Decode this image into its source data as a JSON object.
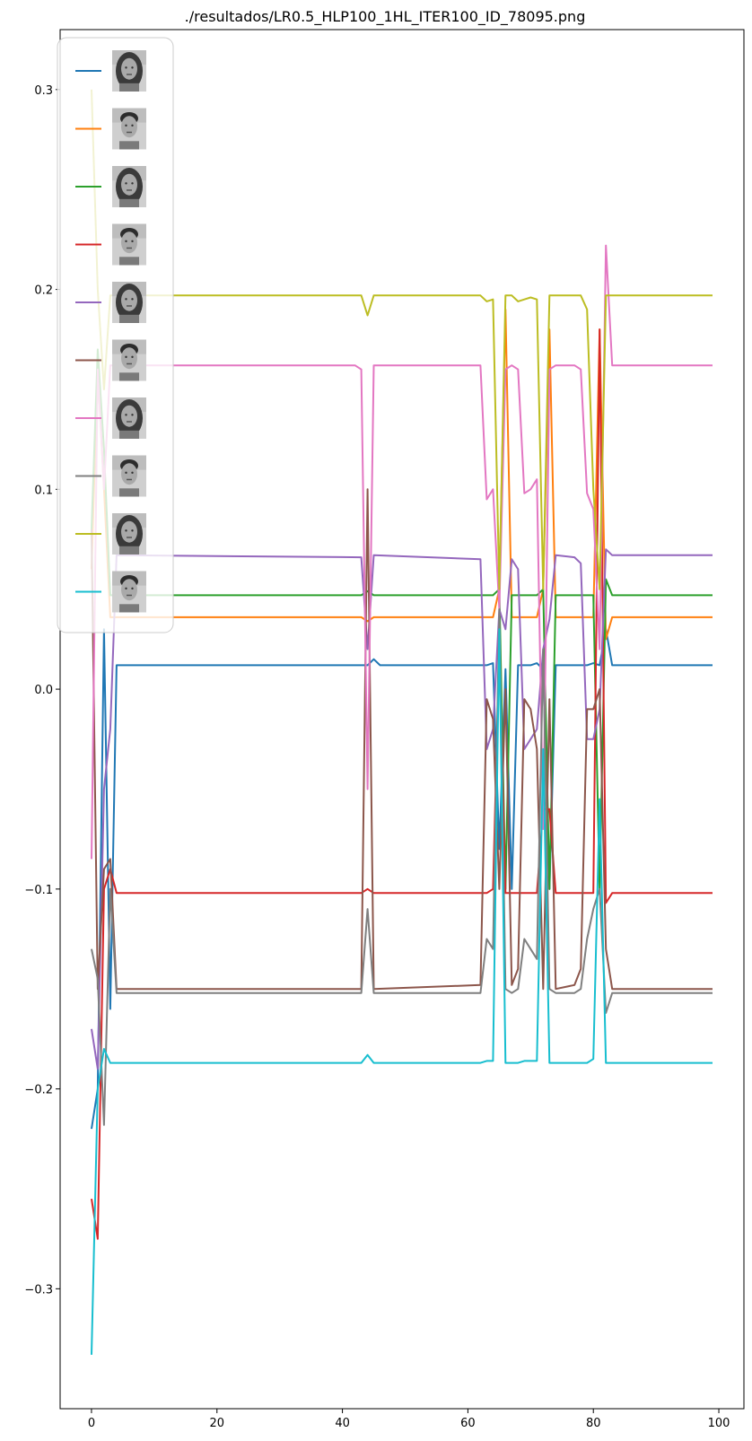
{
  "chart_data": {
    "type": "line",
    "title": "./resultados/LR0.5_HLP100_1HL_ITER100_ID_78095.png",
    "xlabel": "",
    "ylabel": "",
    "xlim": [
      -5,
      104
    ],
    "ylim": [
      -0.36,
      0.33
    ],
    "xticks": [
      0,
      20,
      40,
      60,
      80,
      100
    ],
    "yticks": [
      -0.3,
      -0.2,
      -0.1,
      0.0,
      0.1,
      0.2,
      0.3
    ],
    "ytick_labels": [
      "−0.3",
      "−0.2",
      "−0.1",
      "0.0",
      "0.1",
      "0.2",
      "0.3"
    ],
    "grid": false,
    "legend": {
      "placement": "top-left",
      "entries_note": "each entry shows a small grayscale face photo instead of a text label"
    },
    "series": [
      {
        "color": "#1f77b4",
        "face": "woman",
        "points": [
          [
            0,
            -0.22
          ],
          [
            1,
            -0.2
          ],
          [
            2,
            0.03
          ],
          [
            3,
            -0.16
          ],
          [
            4,
            0.012
          ],
          [
            43,
            0.012
          ],
          [
            44,
            0.012
          ],
          [
            45,
            0.015
          ],
          [
            46,
            0.012
          ],
          [
            62,
            0.012
          ],
          [
            63,
            0.012
          ],
          [
            64,
            0.013
          ],
          [
            65,
            -0.08
          ],
          [
            66,
            0.01
          ],
          [
            67,
            -0.1
          ],
          [
            68,
            0.012
          ],
          [
            70,
            0.012
          ],
          [
            71,
            0.013
          ],
          [
            72,
            0.01
          ],
          [
            73,
            -0.1
          ],
          [
            74,
            0.012
          ],
          [
            79,
            0.012
          ],
          [
            80,
            0.013
          ],
          [
            81,
            0.012
          ],
          [
            82,
            0.03
          ],
          [
            83,
            0.012
          ],
          [
            99,
            0.012
          ]
        ]
      },
      {
        "color": "#ff7f0e",
        "face": "man",
        "points": [
          [
            0,
            0.06
          ],
          [
            1,
            0.16
          ],
          [
            2,
            0.1
          ],
          [
            3,
            0.036
          ],
          [
            43,
            0.036
          ],
          [
            44,
            0.034
          ],
          [
            45,
            0.036
          ],
          [
            62,
            0.036
          ],
          [
            63,
            0.036
          ],
          [
            64,
            0.036
          ],
          [
            65,
            0.05
          ],
          [
            66,
            0.19
          ],
          [
            67,
            0.036
          ],
          [
            71,
            0.036
          ],
          [
            72,
            0.05
          ],
          [
            73,
            0.18
          ],
          [
            74,
            0.036
          ],
          [
            80,
            0.036
          ],
          [
            81,
            0.18
          ],
          [
            82,
            0.025
          ],
          [
            83,
            0.036
          ],
          [
            99,
            0.036
          ]
        ]
      },
      {
        "color": "#2ca02c",
        "face": "woman",
        "points": [
          [
            0,
            0.08
          ],
          [
            1,
            0.17
          ],
          [
            2,
            0.12
          ],
          [
            3,
            0.047
          ],
          [
            43,
            0.047
          ],
          [
            44,
            0.049
          ],
          [
            45,
            0.047
          ],
          [
            62,
            0.047
          ],
          [
            63,
            0.047
          ],
          [
            64,
            0.047
          ],
          [
            65,
            0.05
          ],
          [
            66,
            -0.1
          ],
          [
            67,
            0.047
          ],
          [
            71,
            0.047
          ],
          [
            72,
            0.05
          ],
          [
            73,
            -0.1
          ],
          [
            74,
            0.047
          ],
          [
            80,
            0.047
          ],
          [
            81,
            -0.1
          ],
          [
            82,
            0.055
          ],
          [
            83,
            0.047
          ],
          [
            99,
            0.047
          ]
        ]
      },
      {
        "color": "#d62728",
        "face": "man",
        "points": [
          [
            0,
            -0.255
          ],
          [
            1,
            -0.275
          ],
          [
            2,
            -0.1
          ],
          [
            3,
            -0.09
          ],
          [
            4,
            -0.102
          ],
          [
            43,
            -0.102
          ],
          [
            44,
            -0.1
          ],
          [
            45,
            -0.102
          ],
          [
            62,
            -0.102
          ],
          [
            63,
            -0.102
          ],
          [
            64,
            -0.1
          ],
          [
            65,
            0.02
          ],
          [
            66,
            -0.102
          ],
          [
            71,
            -0.102
          ],
          [
            72,
            -0.06
          ],
          [
            73,
            -0.06
          ],
          [
            74,
            -0.102
          ],
          [
            80,
            -0.102
          ],
          [
            81,
            0.18
          ],
          [
            82,
            -0.107
          ],
          [
            83,
            -0.102
          ],
          [
            99,
            -0.102
          ]
        ]
      },
      {
        "color": "#9467bd",
        "face": "woman",
        "points": [
          [
            0,
            -0.17
          ],
          [
            1,
            -0.19
          ],
          [
            2,
            -0.05
          ],
          [
            3,
            -0.02
          ],
          [
            4,
            0.067
          ],
          [
            43,
            0.066
          ],
          [
            44,
            0.02
          ],
          [
            45,
            0.067
          ],
          [
            62,
            0.065
          ],
          [
            63,
            -0.03
          ],
          [
            64,
            -0.02
          ],
          [
            65,
            0.04
          ],
          [
            66,
            0.03
          ],
          [
            67,
            0.065
          ],
          [
            68,
            0.06
          ],
          [
            69,
            -0.03
          ],
          [
            70,
            -0.025
          ],
          [
            71,
            -0.02
          ],
          [
            72,
            0.02
          ],
          [
            73,
            0.035
          ],
          [
            74,
            0.067
          ],
          [
            77,
            0.066
          ],
          [
            78,
            0.063
          ],
          [
            79,
            -0.025
          ],
          [
            80,
            -0.025
          ],
          [
            81,
            -0.01
          ],
          [
            82,
            0.07
          ],
          [
            83,
            0.067
          ],
          [
            99,
            0.067
          ]
        ]
      },
      {
        "color": "#8c564b",
        "face": "man",
        "points": [
          [
            0,
            0.08
          ],
          [
            1,
            -0.15
          ],
          [
            2,
            -0.09
          ],
          [
            3,
            -0.085
          ],
          [
            4,
            -0.15
          ],
          [
            43,
            -0.15
          ],
          [
            44,
            0.1
          ],
          [
            45,
            -0.15
          ],
          [
            62,
            -0.148
          ],
          [
            63,
            -0.005
          ],
          [
            64,
            -0.015
          ],
          [
            65,
            -0.1
          ],
          [
            66,
            0.0
          ],
          [
            67,
            -0.148
          ],
          [
            68,
            -0.14
          ],
          [
            69,
            -0.005
          ],
          [
            70,
            -0.01
          ],
          [
            71,
            -0.03
          ],
          [
            72,
            -0.15
          ],
          [
            73,
            -0.005
          ],
          [
            74,
            -0.15
          ],
          [
            77,
            -0.148
          ],
          [
            78,
            -0.14
          ],
          [
            79,
            -0.01
          ],
          [
            80,
            -0.01
          ],
          [
            81,
            0.0
          ],
          [
            82,
            -0.13
          ],
          [
            83,
            -0.15
          ],
          [
            99,
            -0.15
          ]
        ]
      },
      {
        "color": "#e377c2",
        "face": "woman",
        "points": [
          [
            0,
            -0.085
          ],
          [
            1,
            0.16
          ],
          [
            2,
            0.1
          ],
          [
            3,
            0.162
          ],
          [
            42,
            0.162
          ],
          [
            43,
            0.16
          ],
          [
            44,
            -0.05
          ],
          [
            45,
            0.162
          ],
          [
            62,
            0.162
          ],
          [
            63,
            0.095
          ],
          [
            64,
            0.1
          ],
          [
            65,
            0.04
          ],
          [
            66,
            0.16
          ],
          [
            67,
            0.162
          ],
          [
            68,
            0.16
          ],
          [
            69,
            0.098
          ],
          [
            70,
            0.1
          ],
          [
            71,
            0.105
          ],
          [
            72,
            -0.07
          ],
          [
            73,
            0.16
          ],
          [
            74,
            0.162
          ],
          [
            77,
            0.162
          ],
          [
            78,
            0.16
          ],
          [
            79,
            0.098
          ],
          [
            80,
            0.09
          ],
          [
            81,
            0.02
          ],
          [
            82,
            0.222
          ],
          [
            83,
            0.162
          ],
          [
            99,
            0.162
          ]
        ]
      },
      {
        "color": "#7f7f7f",
        "face": "man",
        "points": [
          [
            0,
            -0.13
          ],
          [
            1,
            -0.145
          ],
          [
            2,
            -0.218
          ],
          [
            3,
            -0.1
          ],
          [
            4,
            -0.152
          ],
          [
            43,
            -0.152
          ],
          [
            44,
            -0.11
          ],
          [
            45,
            -0.152
          ],
          [
            62,
            -0.152
          ],
          [
            63,
            -0.125
          ],
          [
            64,
            -0.13
          ],
          [
            65,
            0.04
          ],
          [
            66,
            -0.15
          ],
          [
            67,
            -0.152
          ],
          [
            68,
            -0.15
          ],
          [
            69,
            -0.125
          ],
          [
            70,
            -0.13
          ],
          [
            71,
            -0.135
          ],
          [
            72,
            0.02
          ],
          [
            73,
            -0.15
          ],
          [
            74,
            -0.152
          ],
          [
            77,
            -0.152
          ],
          [
            78,
            -0.15
          ],
          [
            79,
            -0.125
          ],
          [
            80,
            -0.11
          ],
          [
            81,
            -0.1
          ],
          [
            82,
            -0.162
          ],
          [
            83,
            -0.152
          ],
          [
            99,
            -0.152
          ]
        ]
      },
      {
        "color": "#bcbd22",
        "face": "woman",
        "points": [
          [
            0,
            0.3
          ],
          [
            1,
            0.2
          ],
          [
            2,
            0.15
          ],
          [
            3,
            0.197
          ],
          [
            43,
            0.197
          ],
          [
            44,
            0.187
          ],
          [
            45,
            0.197
          ],
          [
            62,
            0.197
          ],
          [
            63,
            0.194
          ],
          [
            64,
            0.195
          ],
          [
            65,
            0.05
          ],
          [
            66,
            0.197
          ],
          [
            67,
            0.197
          ],
          [
            68,
            0.194
          ],
          [
            69,
            0.195
          ],
          [
            70,
            0.196
          ],
          [
            71,
            0.195
          ],
          [
            72,
            0.05
          ],
          [
            73,
            0.197
          ],
          [
            78,
            0.197
          ],
          [
            79,
            0.19
          ],
          [
            80,
            0.1
          ],
          [
            81,
            0.05
          ],
          [
            82,
            0.197
          ],
          [
            99,
            0.197
          ]
        ]
      },
      {
        "color": "#17becf",
        "face": "man",
        "points": [
          [
            0,
            -0.333
          ],
          [
            1,
            -0.2
          ],
          [
            2,
            -0.18
          ],
          [
            3,
            -0.187
          ],
          [
            43,
            -0.187
          ],
          [
            44,
            -0.183
          ],
          [
            45,
            -0.187
          ],
          [
            62,
            -0.187
          ],
          [
            63,
            -0.186
          ],
          [
            64,
            -0.186
          ],
          [
            65,
            0.03
          ],
          [
            66,
            -0.187
          ],
          [
            67,
            -0.187
          ],
          [
            68,
            -0.187
          ],
          [
            69,
            -0.186
          ],
          [
            70,
            -0.186
          ],
          [
            71,
            -0.186
          ],
          [
            72,
            -0.03
          ],
          [
            73,
            -0.187
          ],
          [
            79,
            -0.187
          ],
          [
            80,
            -0.185
          ],
          [
            81,
            -0.055
          ],
          [
            82,
            -0.187
          ],
          [
            99,
            -0.187
          ]
        ]
      }
    ]
  }
}
